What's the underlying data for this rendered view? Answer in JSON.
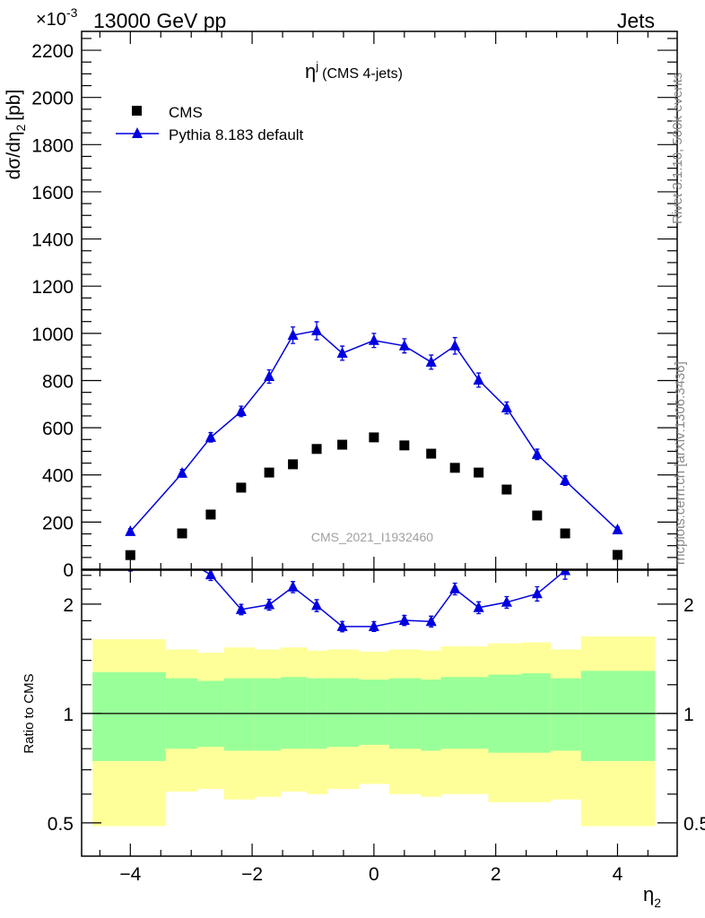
{
  "header": {
    "left": "13000 GeV pp",
    "right": "Jets",
    "exponent": "×10",
    "exponent_power": "-3"
  },
  "side": {
    "rivet": "Rivet 3.1.10,  500k events",
    "mcplots": "mcplots.cern.ch [arXiv:1306.3436]"
  },
  "chart_data": [
    {
      "type": "scatter",
      "title": "η",
      "title_sup": "j",
      "title_suffix": "(CMS 4-jets)",
      "watermark": "CMS_2021_I1932460",
      "ylabel": "dσ/dη",
      "ylabel_sub": "2",
      "ylabel_unit": "[pb]",
      "xlim": [
        -4.8,
        4.98
      ],
      "ylim": [
        0,
        2280
      ],
      "yticks": [
        0,
        200,
        400,
        600,
        800,
        1000,
        1200,
        1400,
        1600,
        1800,
        2000,
        2200
      ],
      "ytick_labels": [
        "0",
        "200",
        "400",
        "600",
        "800",
        "1000",
        "1200",
        "1400",
        "1600",
        "1800",
        "2000",
        "2200"
      ],
      "legend": {
        "placement": "top-left",
        "entries": [
          "CMS",
          "Pythia 8.183 default"
        ]
      },
      "x": [
        -4.0,
        -3.15,
        -2.68,
        -2.18,
        -1.72,
        -1.33,
        -0.94,
        -0.52,
        0,
        0.5,
        0.94,
        1.33,
        1.72,
        2.18,
        2.68,
        3.14,
        4.0
      ],
      "bin_edges": [
        -4.62,
        -3.42,
        -2.9,
        -2.46,
        -1.96,
        -1.53,
        -1.1,
        -0.77,
        -0.25,
        0.25,
        0.77,
        1.1,
        1.52,
        1.88,
        2.43,
        2.9,
        3.4,
        4.61
      ],
      "series": [
        {
          "name": "CMS",
          "color": "#000000",
          "marker": "square",
          "values": [
            60,
            152,
            232,
            346,
            410,
            445,
            510,
            528,
            559,
            525,
            490,
            430,
            410,
            338,
            228,
            152,
            61
          ]
        },
        {
          "name": "Pythia 8.183 default",
          "color": "#0000e0",
          "marker": "triangle",
          "values": [
            160,
            407,
            559,
            669,
            817,
            992,
            1011,
            916,
            970,
            947,
            878,
            947,
            802,
            684,
            487,
            376,
            167
          ],
          "errors": [
            12,
            16,
            20,
            22,
            28,
            35,
            38,
            30,
            30,
            30,
            30,
            35,
            30,
            25,
            22,
            20,
            12
          ]
        }
      ]
    },
    {
      "type": "line",
      "ylabel": "Ratio to CMS",
      "xlabel": "η",
      "xlabel_sub": "2",
      "yscale": "log",
      "ylim": [
        0.405,
        2.48
      ],
      "yticks": [
        0.5,
        1,
        2
      ],
      "ytick_labels": [
        "0.5",
        "1",
        "2"
      ],
      "xticks": [
        -4,
        -2,
        0,
        2,
        4
      ],
      "xtick_labels": [
        "−4",
        "−2",
        "0",
        "2",
        "4"
      ],
      "band_colors": {
        "outer": "#ffff99",
        "inner": "#99ff99"
      },
      "band_outer_hi": [
        1.6,
        1.5,
        1.47,
        1.52,
        1.5,
        1.52,
        1.49,
        1.5,
        1.48,
        1.5,
        1.49,
        1.53,
        1.53,
        1.56,
        1.57,
        1.5,
        1.63
      ],
      "band_inner_hi": [
        1.3,
        1.25,
        1.23,
        1.25,
        1.25,
        1.26,
        1.25,
        1.25,
        1.24,
        1.25,
        1.24,
        1.26,
        1.26,
        1.28,
        1.29,
        1.25,
        1.31
      ],
      "band_inner_lo": [
        0.74,
        0.8,
        0.81,
        0.79,
        0.79,
        0.8,
        0.8,
        0.81,
        0.82,
        0.8,
        0.79,
        0.8,
        0.8,
        0.78,
        0.78,
        0.79,
        0.74
      ],
      "band_outer_lo": [
        0.49,
        0.61,
        0.62,
        0.58,
        0.59,
        0.61,
        0.6,
        0.62,
        0.64,
        0.6,
        0.59,
        0.6,
        0.6,
        0.57,
        0.57,
        0.58,
        0.49
      ]
    }
  ]
}
